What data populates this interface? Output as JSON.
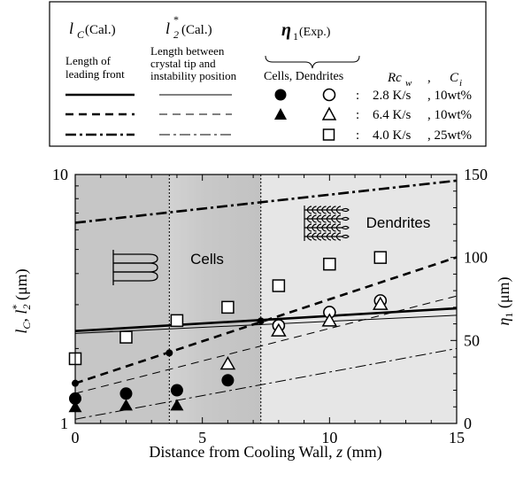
{
  "chart_data": {
    "type": "scatter",
    "xlabel": "Distance from Cooling Wall, ",
    "xlabel_var": "z",
    "xlabel_unit": "  (mm)",
    "ylabel_left": "l",
    "ylabel_left_sub": "C",
    "ylabel_left_sep": ", l",
    "ylabel_left_sup": "*",
    "ylabel_left_sub2": "2",
    "ylabel_left_unit": "  (μm)",
    "ylabel_right": "η",
    "ylabel_right_sub": "1",
    "ylabel_right_unit": "  (μm)",
    "xlim": [
      0,
      15
    ],
    "ylim_left": [
      1,
      10
    ],
    "left_scale": "log",
    "ylim_right": [
      0,
      150
    ],
    "right_scale": "linear",
    "x_ticks": [
      "0",
      "5",
      "10",
      "15"
    ],
    "y_left_ticks": [
      "1",
      "10"
    ],
    "y_right_ticks": [
      "0",
      "50",
      "100",
      "150"
    ],
    "region_boundaries_x": [
      3.7,
      7.3
    ],
    "region_labels": [
      "Cells",
      "Dendrites"
    ],
    "lc_series": [
      {
        "name": "2.8 K/s, 10wt%",
        "x": [
          0,
          15
        ],
        "y": [
          2.35,
          2.9
        ]
      },
      {
        "name": "6.4 K/s, 10wt%",
        "x": [
          0,
          15
        ],
        "y": [
          1.45,
          4.65
        ]
      },
      {
        "name": "4.0 K/s, 25wt%",
        "x": [
          0,
          15
        ],
        "y": [
          6.4,
          9.45
        ]
      }
    ],
    "l2_series": [
      {
        "name": "2.8 K/s, 10wt%",
        "x": [
          0,
          15
        ],
        "y": [
          2.3,
          2.72
        ]
      },
      {
        "name": "6.4 K/s, 10wt%",
        "x": [
          0,
          15
        ],
        "y": [
          1.32,
          3.25
        ]
      },
      {
        "name": "4.0 K/s, 25wt%",
        "x": [
          0,
          15
        ],
        "y": [
          1.04,
          2.0
        ]
      }
    ],
    "onset_points": {
      "x": [
        0,
        3.7,
        7.3
      ],
      "y": [
        1.45,
        1.92,
        2.58
      ]
    },
    "eta_series": [
      {
        "name": "2.8 K/s, 10wt% cells",
        "marker": "filled-circle",
        "x": [
          0,
          2,
          4,
          6
        ],
        "y": [
          15,
          18,
          20,
          26
        ]
      },
      {
        "name": "2.8 K/s, 10wt% dendrites",
        "marker": "open-circle",
        "x": [
          8,
          10,
          12
        ],
        "y": [
          59,
          67,
          74
        ]
      },
      {
        "name": "6.4 K/s, 10wt% cells",
        "marker": "filled-triangle",
        "x": [
          0,
          2,
          4
        ],
        "y": [
          10,
          11,
          11
        ]
      },
      {
        "name": "6.4 K/s, 10wt% dendrites",
        "marker": "open-triangle",
        "x": [
          6,
          8,
          10,
          12
        ],
        "y": [
          36,
          56,
          62,
          72
        ]
      },
      {
        "name": "4.0 K/s, 25wt%",
        "marker": "open-square",
        "x": [
          0,
          2,
          4,
          6,
          8,
          10,
          12
        ],
        "y": [
          39,
          52,
          62,
          70,
          83,
          96,
          100
        ]
      }
    ]
  },
  "legend": {
    "col1_sym": "l",
    "col1_sub": "C",
    "col1_tag": " (Cal.)",
    "col1_desc1": "Length of",
    "col1_desc2": "leading front",
    "col2_sym": "l",
    "col2_sub": "2",
    "col2_sup": "*",
    "col2_tag": "(Cal.)",
    "col2_desc1": "Length between",
    "col2_desc2": "crystal tip and",
    "col2_desc3": "instability position",
    "col3_sym": "η",
    "col3_sub": "1",
    "col3_tag": " (Exp.)",
    "col3_sub_header": "Cells, Dendrites",
    "col4_rc": "Rc",
    "col4_rc_sub": "w",
    "col4_sep": ",",
    "col4_c": "C",
    "col4_c_sub": "i",
    "rows": [
      {
        "colon": ":",
        "rate": "2.8  K/s",
        "conc": ", 10wt%"
      },
      {
        "colon": ":",
        "rate": "6.4  K/s",
        "conc": ", 10wt%"
      },
      {
        "colon": ":",
        "rate": "4.0  K/s",
        "conc": ", 25wt%"
      }
    ]
  }
}
